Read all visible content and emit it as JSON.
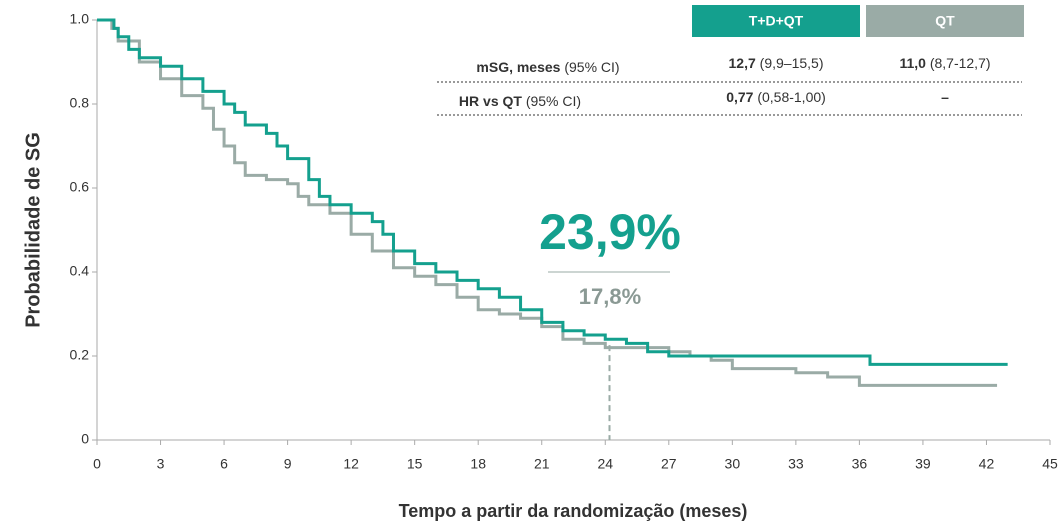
{
  "chart_data": {
    "type": "step",
    "ylabel": "Probabilidade de SG",
    "xlabel": "Tempo a partir da randomização (meses)",
    "xlim": [
      0,
      45
    ],
    "xticks": [
      0,
      3,
      6,
      9,
      12,
      15,
      18,
      21,
      24,
      27,
      30,
      33,
      36,
      39,
      42,
      45
    ],
    "ylim": [
      0,
      1
    ],
    "yticks": [
      0,
      0.2,
      0.4,
      0.6,
      0.8,
      {
        "value": 1,
        "label": "1.0"
      }
    ],
    "series": [
      {
        "name": "T+D+QT",
        "color": "#14a08e",
        "x": [
          0,
          0.5,
          0.8,
          1,
          1.5,
          2,
          3,
          4,
          5,
          6,
          6.5,
          7,
          8,
          8.5,
          9,
          10,
          10.5,
          11,
          12,
          13,
          13.5,
          14,
          15,
          16,
          17,
          18,
          19,
          20,
          21,
          22,
          23,
          24,
          25,
          26,
          27,
          30,
          36.5,
          43
        ],
        "values": [
          1.0,
          1.0,
          0.98,
          0.96,
          0.93,
          0.91,
          0.89,
          0.86,
          0.83,
          0.8,
          0.78,
          0.75,
          0.73,
          0.7,
          0.67,
          0.62,
          0.58,
          0.56,
          0.54,
          0.52,
          0.49,
          0.45,
          0.42,
          0.4,
          0.38,
          0.36,
          0.34,
          0.31,
          0.28,
          0.26,
          0.25,
          0.24,
          0.23,
          0.21,
          0.2,
          0.2,
          0.18,
          0.18
        ]
      },
      {
        "name": "QT",
        "color": "#9aaba6",
        "x": [
          0,
          0.7,
          1,
          2,
          3,
          4,
          5,
          5.5,
          6,
          6.5,
          7,
          8,
          9,
          9.5,
          10,
          11,
          12,
          13,
          14,
          15,
          16,
          17,
          18,
          19,
          20,
          21,
          22,
          23,
          24,
          25,
          27,
          28,
          29,
          30,
          33,
          34.5,
          36,
          42.5
        ],
        "values": [
          1.0,
          0.98,
          0.95,
          0.9,
          0.86,
          0.82,
          0.79,
          0.74,
          0.7,
          0.66,
          0.63,
          0.62,
          0.61,
          0.58,
          0.56,
          0.54,
          0.49,
          0.45,
          0.41,
          0.39,
          0.37,
          0.34,
          0.31,
          0.3,
          0.29,
          0.27,
          0.24,
          0.23,
          0.22,
          0.22,
          0.21,
          0.2,
          0.19,
          0.17,
          0.16,
          0.15,
          0.13,
          0.13
        ]
      }
    ],
    "reference_line": {
      "x": 24.2,
      "y": 0.226
    },
    "annotations": [
      "23,9%",
      "17,8%"
    ],
    "table": {
      "rows": [
        {
          "label": [
            "mSG, meses",
            " (95% CI)"
          ],
          "cells": [
            [
              "12,7",
              " (9,9–15,5)"
            ],
            [
              "11,0",
              " (8,7-12,7)"
            ]
          ]
        },
        {
          "label": [
            "HR vs QT",
            " (95% CI)"
          ],
          "cells": [
            [
              "0,77",
              " (0,58-1,00)"
            ],
            [
              "–",
              ""
            ]
          ]
        }
      ]
    }
  }
}
